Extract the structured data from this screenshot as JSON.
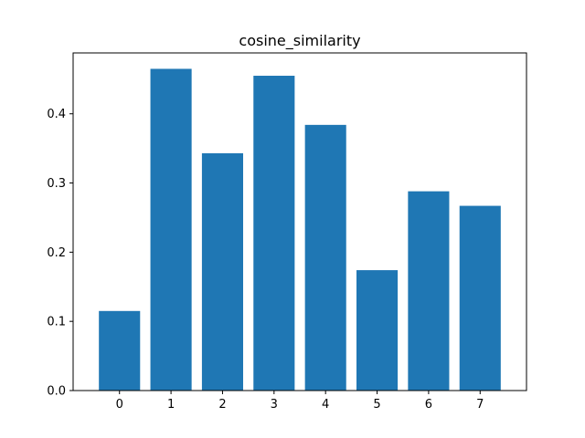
{
  "chart_data": {
    "type": "bar",
    "title": "cosine_similarity",
    "xlabel": "",
    "ylabel": "",
    "categories": [
      "0",
      "1",
      "2",
      "3",
      "4",
      "5",
      "6",
      "7"
    ],
    "values": [
      0.115,
      0.465,
      0.343,
      0.455,
      0.384,
      0.174,
      0.288,
      0.267
    ],
    "xlim": [
      -0.9,
      7.9
    ],
    "ylim": [
      0,
      0.488
    ],
    "yticks": [
      0.0,
      0.1,
      0.2,
      0.3,
      0.4
    ],
    "ytick_labels": [
      "0.0",
      "0.1",
      "0.2",
      "0.3",
      "0.4"
    ],
    "bar_color": "#1f77b4",
    "grid": false,
    "legend": "none"
  }
}
